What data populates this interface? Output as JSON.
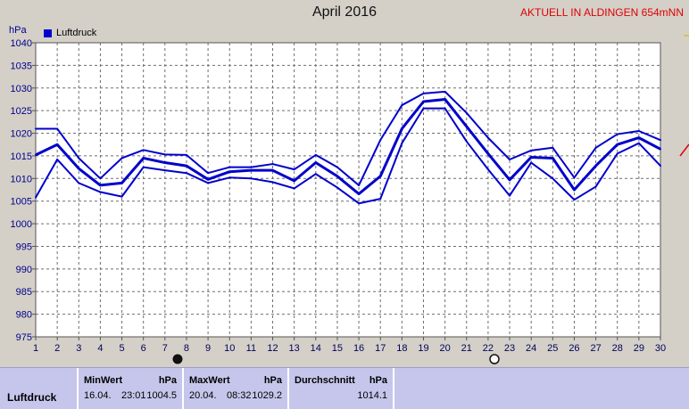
{
  "header": {
    "title": "April 2016",
    "station": "AKTUELL IN ALDINGEN 654mNN",
    "unit": "hPa",
    "legend_label": "Luftdruck"
  },
  "colors": {
    "line": "#0000cc",
    "grid": "#6e6e6e",
    "axis": "#00008b",
    "station": "#e00000"
  },
  "stats": {
    "row_label": "Luftdruck",
    "row_label_2": "Luftdruck",
    "min": {
      "header": "MinWert",
      "unit": "hPa",
      "date": "16.04.",
      "time": "23:01",
      "value": "1004.5"
    },
    "max": {
      "header": "MaxWert",
      "unit": "hPa",
      "date": "20.04.",
      "time": "08:32",
      "value": "1029.2"
    },
    "avg": {
      "header": "Durchschnitt",
      "unit": "hPa",
      "value": "1014.1"
    }
  },
  "chart_data": {
    "type": "line",
    "title": "April 2016",
    "ylabel": "hPa",
    "ylim": [
      975,
      1040
    ],
    "yticks": [
      975,
      980,
      985,
      990,
      995,
      1000,
      1005,
      1010,
      1015,
      1020,
      1025,
      1030,
      1035,
      1040
    ],
    "xlim": [
      1,
      30
    ],
    "x": [
      1,
      2,
      3,
      4,
      5,
      6,
      7,
      8,
      9,
      10,
      11,
      12,
      13,
      14,
      15,
      16,
      17,
      18,
      19,
      20,
      21,
      22,
      23,
      24,
      25,
      26,
      27,
      28,
      29,
      30
    ],
    "series": [
      {
        "name": "Luftdruck",
        "values": [
          1015.2,
          1017.5,
          1012.2,
          1008.5,
          1009.0,
          1014.5,
          1013.5,
          1012.8,
          1009.8,
          1011.5,
          1011.8,
          1011.8,
          1009.5,
          1013.5,
          1010.5,
          1006.6,
          1010.5,
          1021.0,
          1027.0,
          1027.5,
          1021.5,
          1015.5,
          1009.7,
          1014.7,
          1014.5,
          1007.5,
          1012.8,
          1017.5,
          1019.0,
          1016.5
        ]
      },
      {
        "values": [
          1021.0,
          1021.0,
          1014.5,
          1010.0,
          1014.5,
          1016.3,
          1015.3,
          1015.2,
          1011.2,
          1012.5,
          1012.5,
          1013.2,
          1012.0,
          1015.2,
          1012.5,
          1008.5,
          1018.5,
          1026.2,
          1028.8,
          1029.2,
          1024.5,
          1019.0,
          1014.2,
          1016.2,
          1016.8,
          1010.2,
          1016.8,
          1019.8,
          1020.5,
          1018.5
        ]
      },
      {
        "values": [
          1005.8,
          1014.2,
          1009.0,
          1007.0,
          1006.0,
          1012.5,
          1011.8,
          1011.2,
          1009.0,
          1010.2,
          1010.0,
          1009.2,
          1007.8,
          1011.0,
          1008.0,
          1004.5,
          1005.5,
          1017.8,
          1025.5,
          1025.5,
          1018.2,
          1012.0,
          1006.2,
          1013.5,
          1010.0,
          1005.3,
          1008.2,
          1015.5,
          1017.8,
          1012.8
        ]
      }
    ],
    "grid": true,
    "legend": "top-left"
  }
}
